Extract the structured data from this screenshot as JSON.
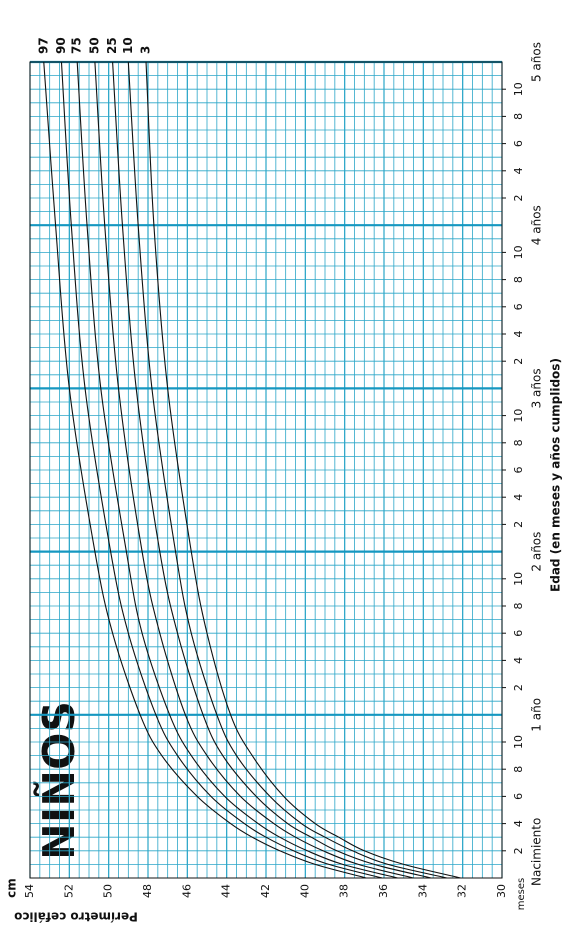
{
  "chart_data": {
    "type": "line",
    "title": "NIÑOS",
    "y_unit": "cm",
    "y_label": "Perímetro cefálico",
    "x_label": "Edad (en meses y años cumplidos)",
    "x_unit": "meses",
    "x_start_label": "Nacimiento",
    "x": [
      0,
      1,
      2,
      3,
      4,
      6,
      9,
      12,
      18,
      24,
      36,
      48,
      60
    ],
    "xlim": [
      0,
      60
    ],
    "ylim": [
      30,
      54
    ],
    "yticks": [
      30,
      32,
      34,
      36,
      38,
      40,
      42,
      44,
      46,
      48,
      50,
      52,
      54
    ],
    "xticks": [
      {
        "value": 2,
        "label": "2"
      },
      {
        "value": 4,
        "label": "4"
      },
      {
        "value": 6,
        "label": "6"
      },
      {
        "value": 8,
        "label": "8"
      },
      {
        "value": 10,
        "label": "10"
      },
      {
        "value": 14,
        "label": "2"
      },
      {
        "value": 16,
        "label": "4"
      },
      {
        "value": 18,
        "label": "6"
      },
      {
        "value": 20,
        "label": "8"
      },
      {
        "value": 22,
        "label": "10"
      },
      {
        "value": 26,
        "label": "2"
      },
      {
        "value": 28,
        "label": "4"
      },
      {
        "value": 30,
        "label": "6"
      },
      {
        "value": 32,
        "label": "8"
      },
      {
        "value": 34,
        "label": "10"
      },
      {
        "value": 38,
        "label": "2"
      },
      {
        "value": 40,
        "label": "4"
      },
      {
        "value": 42,
        "label": "6"
      },
      {
        "value": 44,
        "label": "8"
      },
      {
        "value": 46,
        "label": "10"
      },
      {
        "value": 50,
        "label": "2"
      },
      {
        "value": 52,
        "label": "4"
      },
      {
        "value": 54,
        "label": "6"
      },
      {
        "value": 56,
        "label": "8"
      },
      {
        "value": 58,
        "label": "10"
      }
    ],
    "year_ticks": [
      {
        "value": 12,
        "label": "1 año"
      },
      {
        "value": 24,
        "label": "2 años"
      },
      {
        "value": 36,
        "label": "3 años"
      },
      {
        "value": 48,
        "label": "4 años"
      },
      {
        "value": 60,
        "label": "5 años"
      }
    ],
    "grid": true,
    "grid_minor": {
      "x": 1,
      "y": 0.5
    },
    "grid_color": "#2ba6c8",
    "series": [
      {
        "name": "97",
        "color": "#111111",
        "values": [
          36.9,
          39.5,
          41.3,
          42.7,
          43.8,
          45.5,
          47.3,
          48.4,
          49.8,
          50.7,
          52.0,
          52.7,
          53.3
        ]
      },
      {
        "name": "90",
        "color": "#111111",
        "values": [
          36.1,
          38.8,
          40.6,
          42.0,
          43.1,
          44.8,
          46.5,
          47.6,
          49.0,
          49.9,
          51.2,
          51.9,
          52.4
        ]
      },
      {
        "name": "75",
        "color": "#111111",
        "values": [
          35.3,
          38.1,
          39.9,
          41.3,
          42.4,
          44.1,
          45.8,
          46.9,
          48.3,
          49.1,
          50.4,
          51.1,
          51.6
        ]
      },
      {
        "name": "50",
        "color": "#111111",
        "values": [
          34.5,
          37.3,
          39.1,
          40.5,
          41.6,
          43.3,
          45.0,
          46.1,
          47.4,
          48.3,
          49.5,
          50.2,
          50.7
        ]
      },
      {
        "name": "25",
        "color": "#111111",
        "values": [
          33.6,
          36.5,
          38.4,
          39.7,
          40.9,
          42.5,
          44.2,
          45.2,
          46.5,
          47.4,
          48.6,
          49.3,
          49.8
        ]
      },
      {
        "name": "10",
        "color": "#111111",
        "values": [
          32.8,
          35.8,
          37.6,
          39.0,
          40.2,
          41.8,
          43.5,
          44.5,
          45.8,
          46.6,
          47.8,
          48.5,
          49.0
        ]
      },
      {
        "name": "3",
        "color": "#111111",
        "values": [
          32.1,
          35.0,
          37.0,
          38.3,
          39.5,
          41.1,
          42.7,
          43.8,
          45.0,
          45.8,
          47.0,
          47.7,
          48.1
        ]
      }
    ]
  }
}
